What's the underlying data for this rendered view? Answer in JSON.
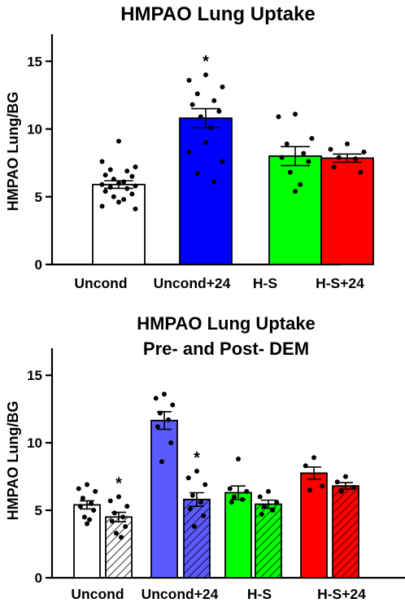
{
  "chart_data": [
    {
      "type": "bar",
      "title": "HMPAO Lung Uptake",
      "subtitle": "",
      "ylabel": "HMPAO Lung/BG",
      "xlabel": "",
      "ylim": [
        0,
        17
      ],
      "yticks": [
        0,
        5,
        10,
        15
      ],
      "grid": false,
      "legend": "none",
      "error_bars": "SEM",
      "categories": [
        "Uncond",
        "Uncond+24",
        "H-S",
        "H-S+24"
      ],
      "bars": [
        {
          "category": "Uncond",
          "value": 5.9,
          "error": 0.28,
          "fill": "#ffffff",
          "hatched": false,
          "annotation": "",
          "points": [
            9.1,
            7.6,
            7.2,
            7.0,
            6.9,
            6.6,
            6.5,
            6.3,
            6.1,
            6.0,
            5.9,
            5.8,
            5.7,
            5.6,
            5.4,
            5.2,
            5.0,
            4.8,
            4.6,
            4.3,
            4.1
          ]
        },
        {
          "category": "Uncond+24",
          "value": 10.8,
          "error": 0.7,
          "fill": "#0000ff",
          "hatched": false,
          "annotation": "*",
          "points": [
            14.0,
            13.6,
            13.1,
            12.6,
            12.1,
            11.8,
            11.3,
            10.9,
            10.1,
            9.0,
            8.3,
            7.6,
            6.7,
            6.1
          ]
        },
        {
          "category": "H-S",
          "value": 8.0,
          "error": 0.7,
          "fill": "#00ff00",
          "hatched": false,
          "annotation": "",
          "points": [
            11.1,
            10.9,
            9.3,
            8.9,
            8.2,
            7.9,
            7.6,
            6.8,
            5.9,
            5.4
          ]
        },
        {
          "category": "H-S+24",
          "value": 7.85,
          "error": 0.3,
          "fill": "#ff0000",
          "hatched": false,
          "annotation": "",
          "points": [
            8.9,
            8.5,
            8.3,
            7.9,
            7.8,
            7.2,
            6.8
          ]
        }
      ]
    },
    {
      "type": "bar",
      "title": "HMPAO Lung Uptake",
      "subtitle": "Pre- and Post- DEM",
      "ylabel": "HMPAO Lung/BG",
      "xlabel": "",
      "ylim": [
        0,
        17
      ],
      "yticks": [
        0,
        5,
        10,
        15
      ],
      "grid": false,
      "legend": "none",
      "error_bars": "SEM",
      "categories": [
        "Uncond",
        "Uncond+24",
        "H-S",
        "H-S+24"
      ],
      "bars": [
        {
          "category": "Uncond",
          "value": 5.4,
          "error": 0.3,
          "fill": "#ffffff",
          "hatched": false,
          "annotation": "",
          "points": [
            6.9,
            6.6,
            6.4,
            5.9,
            5.5,
            5.3,
            5.0,
            4.5,
            4.3,
            4.0
          ]
        },
        {
          "category": "Uncond",
          "value": 4.5,
          "error": 0.35,
          "fill": "#ffffff",
          "hatched": true,
          "annotation": "*",
          "points": [
            6.0,
            5.7,
            5.3,
            4.8,
            4.5,
            4.2,
            3.8,
            3.3,
            3.0
          ]
        },
        {
          "category": "Uncond+24",
          "value": 11.65,
          "error": 0.65,
          "fill": "#5a5aff",
          "hatched": false,
          "annotation": "",
          "points": [
            13.6,
            13.3,
            12.8,
            12.2,
            11.7,
            11.2,
            10.0,
            8.6
          ]
        },
        {
          "category": "Uncond+24",
          "value": 5.8,
          "error": 0.5,
          "fill": "#5a5aff",
          "hatched": true,
          "annotation": "*",
          "points": [
            7.9,
            7.4,
            6.9,
            6.1,
            5.6,
            5.1,
            4.6,
            3.8
          ]
        },
        {
          "category": "H-S",
          "value": 6.3,
          "error": 0.5,
          "fill": "#00ff00",
          "hatched": false,
          "annotation": "",
          "points": [
            8.8,
            6.6,
            6.4,
            6.0,
            5.8,
            5.6
          ]
        },
        {
          "category": "H-S",
          "value": 5.45,
          "error": 0.3,
          "fill": "#00ff00",
          "hatched": true,
          "annotation": "",
          "points": [
            6.4,
            6.0,
            5.6,
            5.3,
            5.0,
            4.7
          ]
        },
        {
          "category": "H-S+24",
          "value": 7.75,
          "error": 0.45,
          "fill": "#ff0000",
          "hatched": false,
          "annotation": "",
          "points": [
            8.9,
            8.3,
            6.8,
            6.5
          ]
        },
        {
          "category": "H-S+24",
          "value": 6.8,
          "error": 0.25,
          "fill": "#ff0000",
          "hatched": true,
          "annotation": "",
          "points": [
            7.5,
            7.1,
            6.7,
            6.4
          ]
        }
      ]
    }
  ]
}
